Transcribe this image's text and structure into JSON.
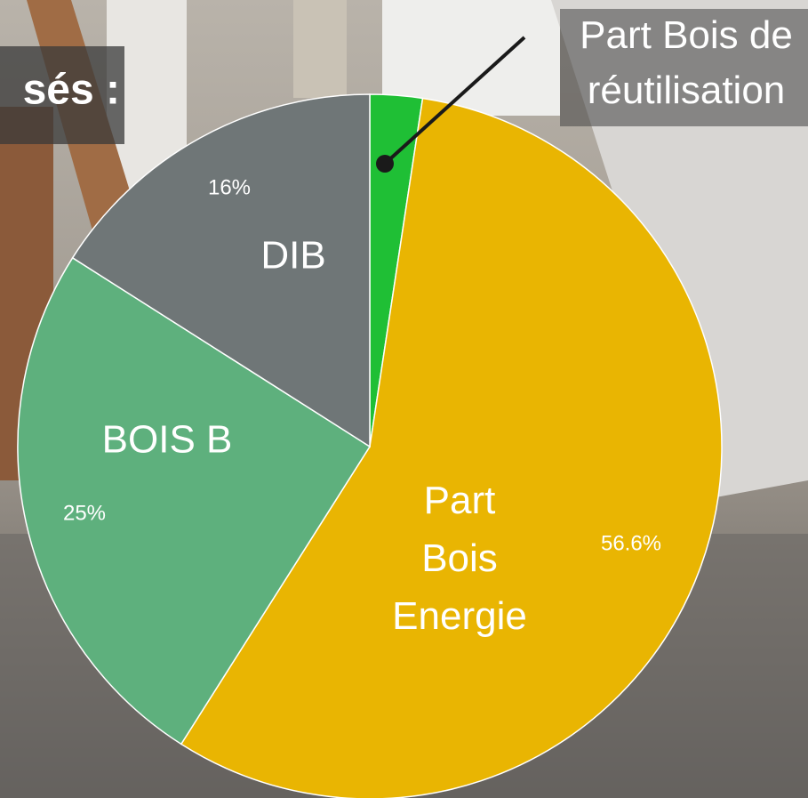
{
  "chart_data": {
    "type": "pie",
    "title": "sés :",
    "categories": [
      "Part Bois de réutilisation",
      "Part Bois Energie",
      "BOIS B",
      "DIB"
    ],
    "values": [
      2.4,
      56.6,
      25,
      16
    ],
    "value_labels": [
      null,
      "56.6%",
      "25%",
      "16%"
    ],
    "colors": [
      "#1fbf35",
      "#e9b502",
      "#5eb07d",
      "#6f7677"
    ]
  }
}
